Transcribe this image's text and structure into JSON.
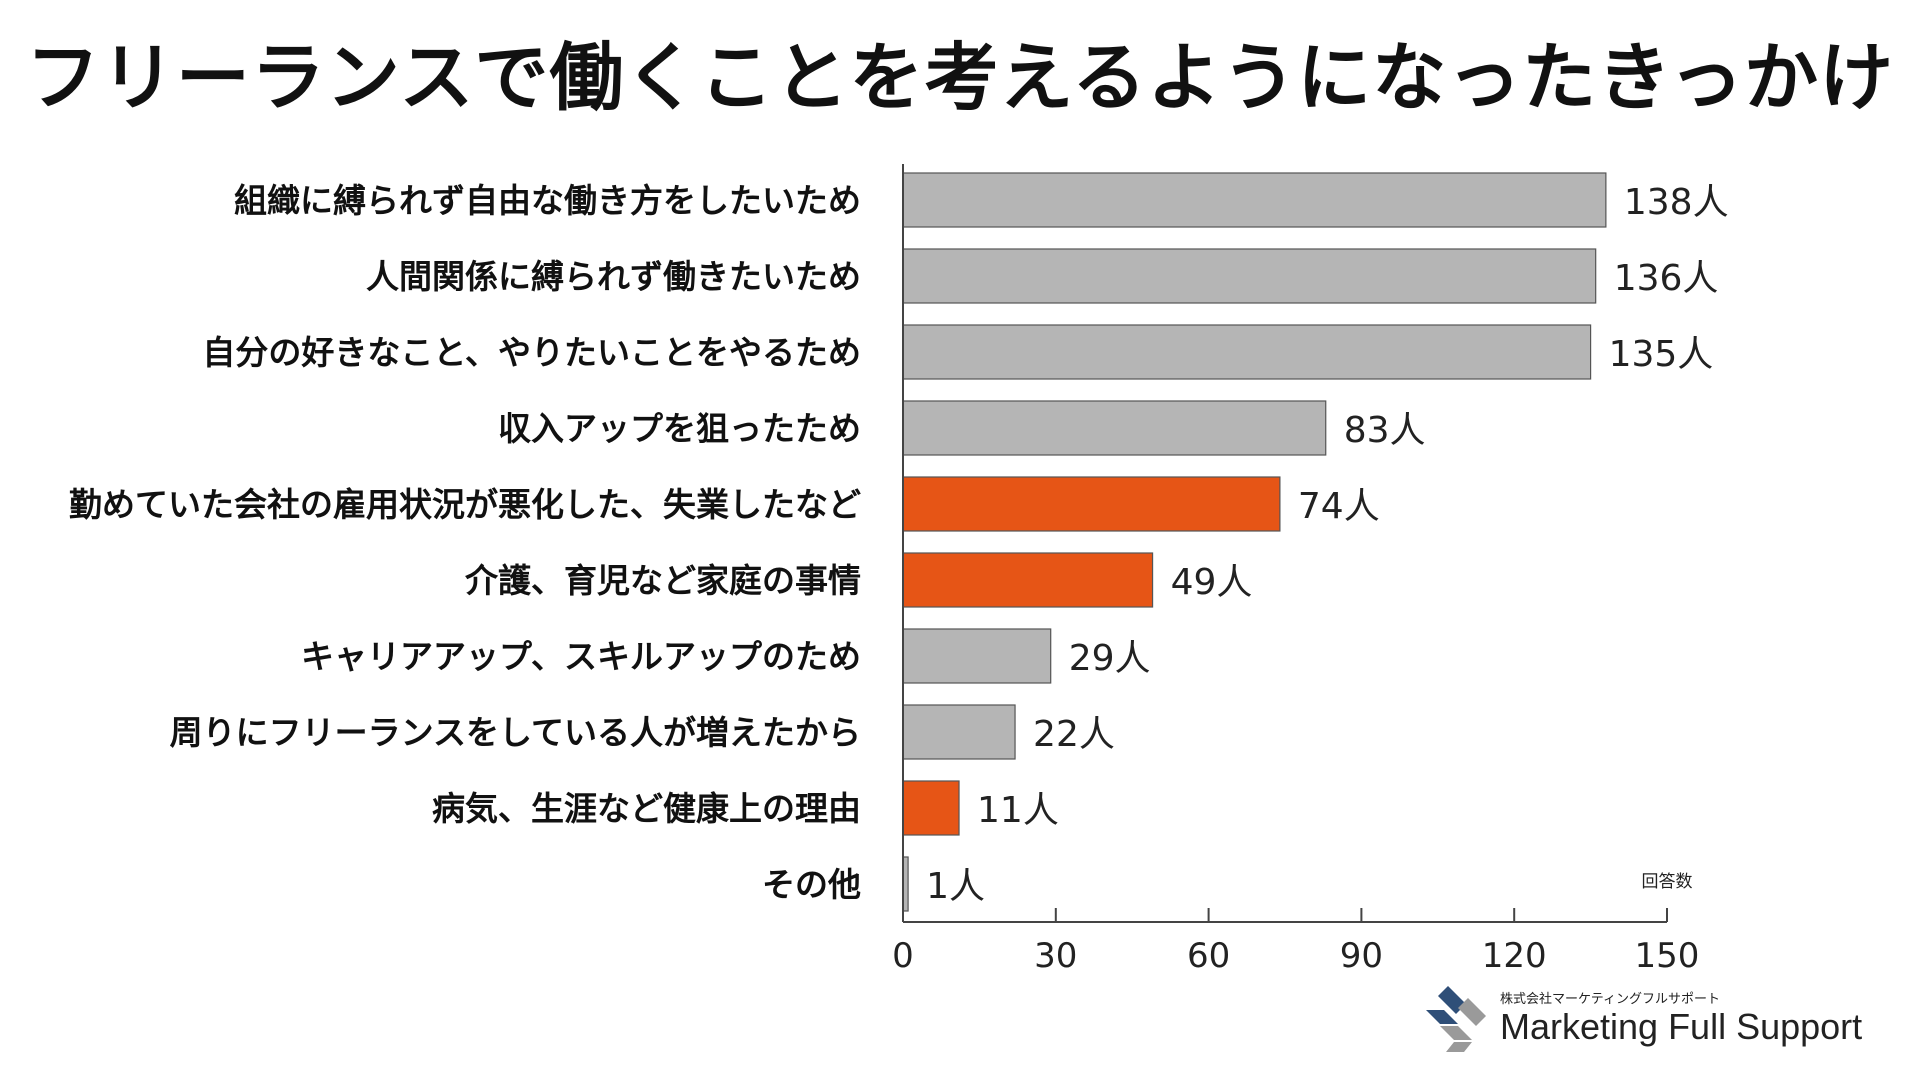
{
  "title": "フリーランスで働くことを考えるようになったきっかけ",
  "chart_data": {
    "type": "bar",
    "orientation": "horizontal",
    "categories": [
      "組織に縛られず自由な働き方をしたいため",
      "人間関係に縛られず働きたいため",
      "自分の好きなこと、やりたいことをやるため",
      "収入アップを狙ったため",
      "勤めていた会社の雇用状況が悪化した、失業したなど",
      "介護、育児など家庭の事情",
      "キャリアアップ、スキルアップのため",
      "周りにフリーランスをしている人が増えたから",
      "病気、生涯など健康上の理由",
      "その他"
    ],
    "values": [
      138,
      136,
      135,
      83,
      74,
      49,
      29,
      22,
      11,
      1
    ],
    "value_labels": [
      "138人",
      "136人",
      "135人",
      "83人",
      "74人",
      "49人",
      "29人",
      "22人",
      "11人",
      "1人"
    ],
    "highlighted": [
      false,
      false,
      false,
      false,
      true,
      true,
      false,
      false,
      true,
      false
    ],
    "colors": {
      "normal": "#b5b5b5",
      "highlight": "#e65516",
      "border": "#555555"
    },
    "xlim": [
      0,
      150
    ],
    "xticks": [
      0,
      30,
      60,
      90,
      120,
      150
    ],
    "xlabel": "回答数",
    "grid": false
  },
  "logo": {
    "company": "株式会社マーケティングフルサポート",
    "name": "Marketing Full Support",
    "colors": {
      "dark": "#2f4f78",
      "light": "#9a9a9a"
    }
  }
}
